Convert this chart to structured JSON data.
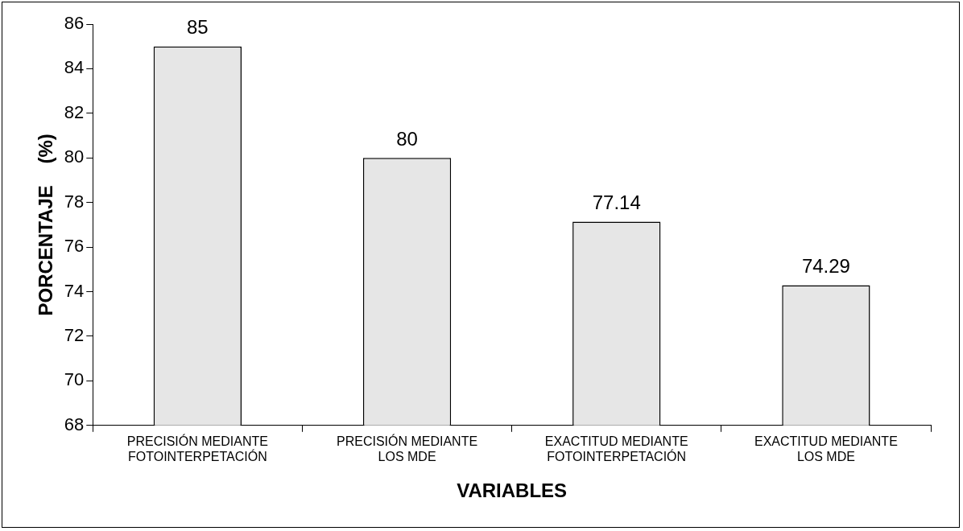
{
  "chart_data": {
    "type": "bar",
    "xlabel": "VARIABLES",
    "ylabel": "PORCENTAJE    (%)",
    "categories": [
      "PRECISIÓN MEDIANTE\nFOTOINTERPETACIÓN",
      "PRECISIÓN MEDIANTE\nLOS MDE",
      "EXACTITUD MEDIANTE\nFOTOINTERPETACIÓN",
      "EXACTITUD MEDIANTE\nLOS MDE"
    ],
    "values": [
      85,
      80,
      77.14,
      74.29
    ],
    "color": "#e6e6e6",
    "ylim": [
      68,
      86
    ],
    "yticks": [
      68,
      70,
      72,
      74,
      76,
      78,
      80,
      82,
      84,
      86
    ],
    "data_labels": true,
    "grid": false,
    "legend": false
  }
}
